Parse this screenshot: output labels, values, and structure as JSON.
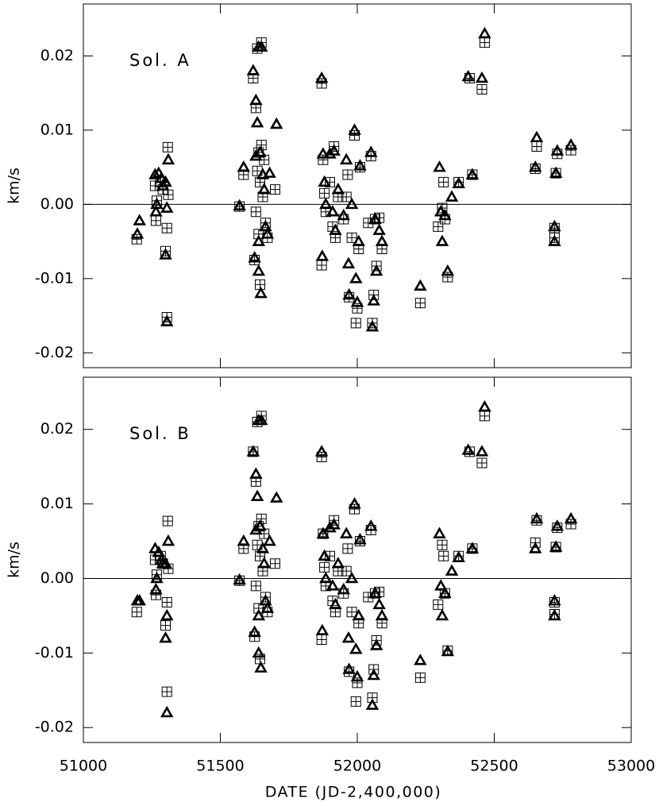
{
  "chart_data": [
    {
      "type": "scatter",
      "annotation": "Sol. A",
      "ylabel": "km/s",
      "xlim": [
        51000,
        53000
      ],
      "ylim": [
        -0.022,
        0.027
      ],
      "xticks": [
        51000,
        51500,
        52000,
        52500,
        53000
      ],
      "show_xtick_labels": false,
      "yticks": [
        -0.02,
        -0.01,
        {
          "value": 0,
          "label": "0.00"
        },
        0.01,
        0.02
      ],
      "zero_line": true,
      "series": [
        {
          "marker": "square-cross",
          "color": "#000000",
          "x": [
            51195,
            51262,
            51265,
            51268,
            51282,
            51290,
            51300,
            51305,
            51308,
            51310,
            51305,
            51570,
            51585,
            51620,
            51625,
            51630,
            51635,
            51640,
            51640,
            51645,
            51645,
            51650,
            51650,
            51655,
            51660,
            51665,
            51672,
            51700,
            51630,
            51635,
            51870,
            51870,
            51875,
            51880,
            51885,
            51900,
            51910,
            51915,
            51920,
            51930,
            51950,
            51960,
            51965,
            51970,
            51980,
            51990,
            51995,
            52000,
            52005,
            52010,
            52050,
            52055,
            52060,
            52065,
            52070,
            52080,
            52090,
            52040,
            52230,
            52295,
            52310,
            52320,
            52330,
            52315,
            52370,
            52410,
            52420,
            52455,
            52465,
            52650,
            52655,
            52720,
            52720,
            52725,
            52730,
            52780
          ],
          "values": [
            -0.0047,
            0.0025,
            -0.0022,
            0.0005,
            0.003,
            0.002,
            -0.0063,
            -0.0152,
            0.0077,
            0.0013,
            -0.0032,
            -0.0003,
            0.004,
            0.017,
            -0.0075,
            0.013,
            0.021,
            0.007,
            -0.004,
            0.003,
            -0.0108,
            0.0218,
            0.008,
            0.001,
            0.006,
            -0.0025,
            -0.0045,
            0.002,
            -0.001,
            0.0045,
            0.0163,
            -0.0082,
            0.006,
            0.0015,
            -0.001,
            0.003,
            -0.003,
            0.0078,
            -0.0045,
            0.001,
            -0.002,
            0.001,
            0.004,
            -0.0125,
            -0.0045,
            0.0093,
            -0.016,
            -0.014,
            -0.006,
            0.005,
            0.0065,
            -0.016,
            -0.0122,
            -0.002,
            -0.0083,
            -0.0018,
            -0.006,
            -0.0025,
            -0.0133,
            -0.003,
            -0.0005,
            -0.002,
            -0.0098,
            0.003,
            0.003,
            0.017,
            0.004,
            0.0155,
            0.0218,
            0.0048,
            0.0078,
            -0.0045,
            -0.0032,
            0.0042,
            0.0068,
            0.0073
          ]
        },
        {
          "marker": "triangle",
          "color": "#000000",
          "x": [
            51197,
            51205,
            51262,
            51265,
            51268,
            51275,
            51285,
            51290,
            51300,
            51305,
            51310,
            51305,
            51300,
            51570,
            51585,
            51620,
            51625,
            51630,
            51635,
            51640,
            51640,
            51645,
            51648,
            51650,
            51655,
            51660,
            51665,
            51672,
            51680,
            51705,
            51630,
            51640,
            51870,
            51872,
            51875,
            51880,
            51885,
            51900,
            51910,
            51915,
            51920,
            51930,
            51950,
            51960,
            51968,
            51970,
            51980,
            51990,
            51995,
            52000,
            52005,
            52010,
            52050,
            52055,
            52060,
            52065,
            52070,
            52080,
            52090,
            52230,
            52300,
            52305,
            52310,
            52320,
            52330,
            52345,
            52370,
            52405,
            52420,
            52455,
            52465,
            52650,
            52655,
            52720,
            52720,
            52725,
            52730,
            52780
          ],
          "values": [
            -0.004,
            -0.0022,
            0.004,
            -0.001,
            0,
            0.0042,
            0.0035,
            0.0025,
            -0.0068,
            -0.0158,
            0.006,
            -0.0005,
            0.003,
            -0.0002,
            0.005,
            0.018,
            -0.0072,
            0.014,
            0.011,
            0.0212,
            -0.005,
            0.007,
            -0.012,
            0.0212,
            0.004,
            0.002,
            -0.003,
            -0.004,
            0.0042,
            0.0108,
            0.0065,
            -0.009,
            0.017,
            -0.007,
            0.0068,
            0.003,
            0,
            0.0068,
            -0.001,
            0.0072,
            -0.0035,
            0.002,
            -0.0015,
            0.006,
            -0.008,
            -0.0122,
            0,
            0.01,
            -0.01,
            -0.0132,
            -0.005,
            0.0052,
            0.007,
            -0.0165,
            -0.013,
            -0.002,
            -0.009,
            -0.0035,
            -0.005,
            -0.011,
            0.005,
            -0.001,
            -0.005,
            -0.0015,
            -0.009,
            0.001,
            0.0028,
            0.0172,
            0.004,
            0.017,
            0.023,
            0.005,
            0.009,
            -0.003,
            -0.005,
            0.0042,
            0.0072,
            0.008
          ]
        }
      ]
    },
    {
      "type": "scatter",
      "annotation": "Sol. B",
      "ylabel": "km/s",
      "xlabel": "DATE (JD-2,400,000)",
      "xlim": [
        51000,
        53000
      ],
      "ylim": [
        -0.022,
        0.027
      ],
      "xticks": [
        51000,
        51500,
        52000,
        52500,
        53000
      ],
      "show_xtick_labels": true,
      "yticks": [
        -0.02,
        -0.01,
        {
          "value": 0,
          "label": "0.00"
        },
        0.01,
        0.02
      ],
      "zero_line": true,
      "series": [
        {
          "marker": "square-cross",
          "color": "#000000",
          "x": [
            51195,
            51262,
            51265,
            51268,
            51282,
            51290,
            51300,
            51305,
            51308,
            51310,
            51305,
            51570,
            51585,
            51620,
            51625,
            51630,
            51635,
            51640,
            51640,
            51645,
            51645,
            51650,
            51650,
            51655,
            51660,
            51665,
            51672,
            51700,
            51630,
            51635,
            51870,
            51870,
            51875,
            51880,
            51885,
            51900,
            51910,
            51915,
            51920,
            51930,
            51950,
            51960,
            51965,
            51970,
            51980,
            51990,
            51995,
            52000,
            52005,
            52010,
            52050,
            52055,
            52060,
            52065,
            52070,
            52080,
            52090,
            52040,
            52230,
            52295,
            52310,
            52320,
            52330,
            52315,
            52370,
            52410,
            52420,
            52455,
            52465,
            52650,
            52655,
            52720,
            52720,
            52725,
            52730,
            52780
          ],
          "values": [
            -0.0045,
            0.0025,
            -0.0022,
            0.0005,
            0.003,
            0.002,
            -0.0063,
            -0.0152,
            0.0077,
            0.0013,
            -0.0032,
            -0.0003,
            0.004,
            0.017,
            -0.0078,
            0.013,
            0.021,
            0.007,
            -0.004,
            0.003,
            -0.0108,
            0.0218,
            0.008,
            0.001,
            0.006,
            -0.0025,
            -0.0045,
            0.002,
            -0.001,
            0.0045,
            0.0163,
            -0.0082,
            0.006,
            0.0015,
            -0.001,
            0.003,
            -0.003,
            0.0078,
            -0.0045,
            0.001,
            -0.002,
            0.001,
            0.004,
            -0.0125,
            -0.0045,
            0.0093,
            -0.0165,
            -0.014,
            -0.006,
            0.005,
            0.0065,
            -0.016,
            -0.0122,
            -0.002,
            -0.0083,
            -0.0018,
            -0.006,
            -0.0025,
            -0.0133,
            -0.0035,
            0.0045,
            -0.002,
            -0.0097,
            0.003,
            0.003,
            0.017,
            0.004,
            0.0155,
            0.0218,
            0.0048,
            0.0078,
            -0.0048,
            -0.0032,
            0.0042,
            0.0068,
            0.0073
          ]
        },
        {
          "marker": "triangle",
          "color": "#000000",
          "x": [
            51197,
            51205,
            51262,
            51265,
            51268,
            51275,
            51285,
            51290,
            51300,
            51305,
            51310,
            51305,
            51300,
            51570,
            51585,
            51620,
            51625,
            51630,
            51635,
            51640,
            51640,
            51645,
            51648,
            51650,
            51655,
            51660,
            51665,
            51672,
            51680,
            51705,
            51630,
            51640,
            51870,
            51872,
            51875,
            51880,
            51885,
            51900,
            51910,
            51915,
            51920,
            51930,
            51950,
            51960,
            51968,
            51970,
            51980,
            51990,
            51995,
            52000,
            52005,
            52010,
            52050,
            52055,
            52060,
            52065,
            52070,
            52080,
            52090,
            52230,
            52300,
            52305,
            52310,
            52320,
            52330,
            52345,
            52370,
            52405,
            52420,
            52455,
            52465,
            52650,
            52655,
            52720,
            52720,
            52725,
            52730,
            52780
          ],
          "values": [
            -0.003,
            -0.003,
            0.004,
            -0.0015,
            0,
            0.0035,
            0.0025,
            0.002,
            -0.008,
            -0.018,
            0.005,
            -0.005,
            0.002,
            -0.0002,
            0.005,
            0.017,
            -0.0072,
            0.014,
            0.011,
            0.0212,
            -0.005,
            0.007,
            -0.012,
            0.0212,
            0.004,
            0.002,
            -0.003,
            -0.004,
            0.005,
            0.0108,
            0.0065,
            -0.01,
            0.017,
            -0.007,
            0.006,
            0.003,
            0,
            0.0068,
            -0.001,
            0.0072,
            -0.0035,
            0.002,
            -0.0015,
            0.006,
            -0.008,
            -0.0122,
            0,
            0.01,
            -0.0095,
            -0.0132,
            -0.005,
            0.0052,
            0.007,
            -0.017,
            -0.013,
            -0.002,
            -0.009,
            -0.0035,
            -0.005,
            -0.011,
            0.006,
            -0.001,
            -0.005,
            -0.002,
            -0.0098,
            0.001,
            0.0028,
            0.0172,
            0.004,
            0.017,
            0.023,
            0.004,
            0.008,
            -0.003,
            -0.005,
            0.0042,
            0.007,
            0.008
          ]
        }
      ]
    }
  ]
}
